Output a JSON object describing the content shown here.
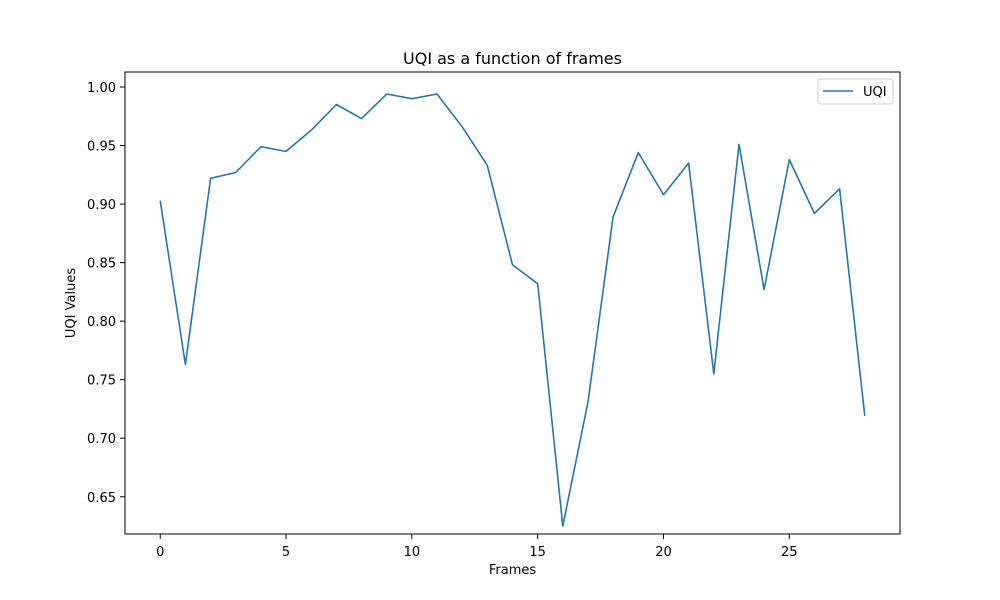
{
  "chart_data": {
    "type": "line",
    "title": "UQI as a function of frames",
    "xlabel": "Frames",
    "ylabel": "UQI Values",
    "xlim": [
      -1.4,
      29.4
    ],
    "ylim": [
      0.6182,
      1.0128
    ],
    "xticks": [
      0,
      5,
      10,
      15,
      20,
      25
    ],
    "xtick_labels": [
      "0",
      "5",
      "10",
      "15",
      "20",
      "25"
    ],
    "yticks": [
      0.65,
      0.7,
      0.75,
      0.8,
      0.85,
      0.9,
      0.95,
      1.0
    ],
    "ytick_labels": [
      "0.65",
      "0.70",
      "0.75",
      "0.80",
      "0.85",
      "0.90",
      "0.95",
      "1.00"
    ],
    "grid": false,
    "legend_position": "top-right",
    "series": [
      {
        "name": "UQI",
        "color": "#1f77b4",
        "x": [
          0,
          1,
          2,
          3,
          4,
          5,
          6,
          7,
          8,
          9,
          10,
          11,
          12,
          13,
          14,
          15,
          16,
          17,
          18,
          19,
          20,
          21,
          22,
          23,
          24,
          25,
          26,
          27,
          28
        ],
        "y": [
          0.903,
          0.763,
          0.922,
          0.927,
          0.949,
          0.945,
          0.963,
          0.985,
          0.973,
          0.994,
          0.99,
          0.994,
          0.966,
          0.933,
          0.848,
          0.832,
          0.625,
          0.731,
          0.889,
          0.944,
          0.908,
          0.935,
          0.755,
          0.951,
          0.827,
          0.938,
          0.892,
          0.913,
          0.719
        ]
      }
    ]
  }
}
